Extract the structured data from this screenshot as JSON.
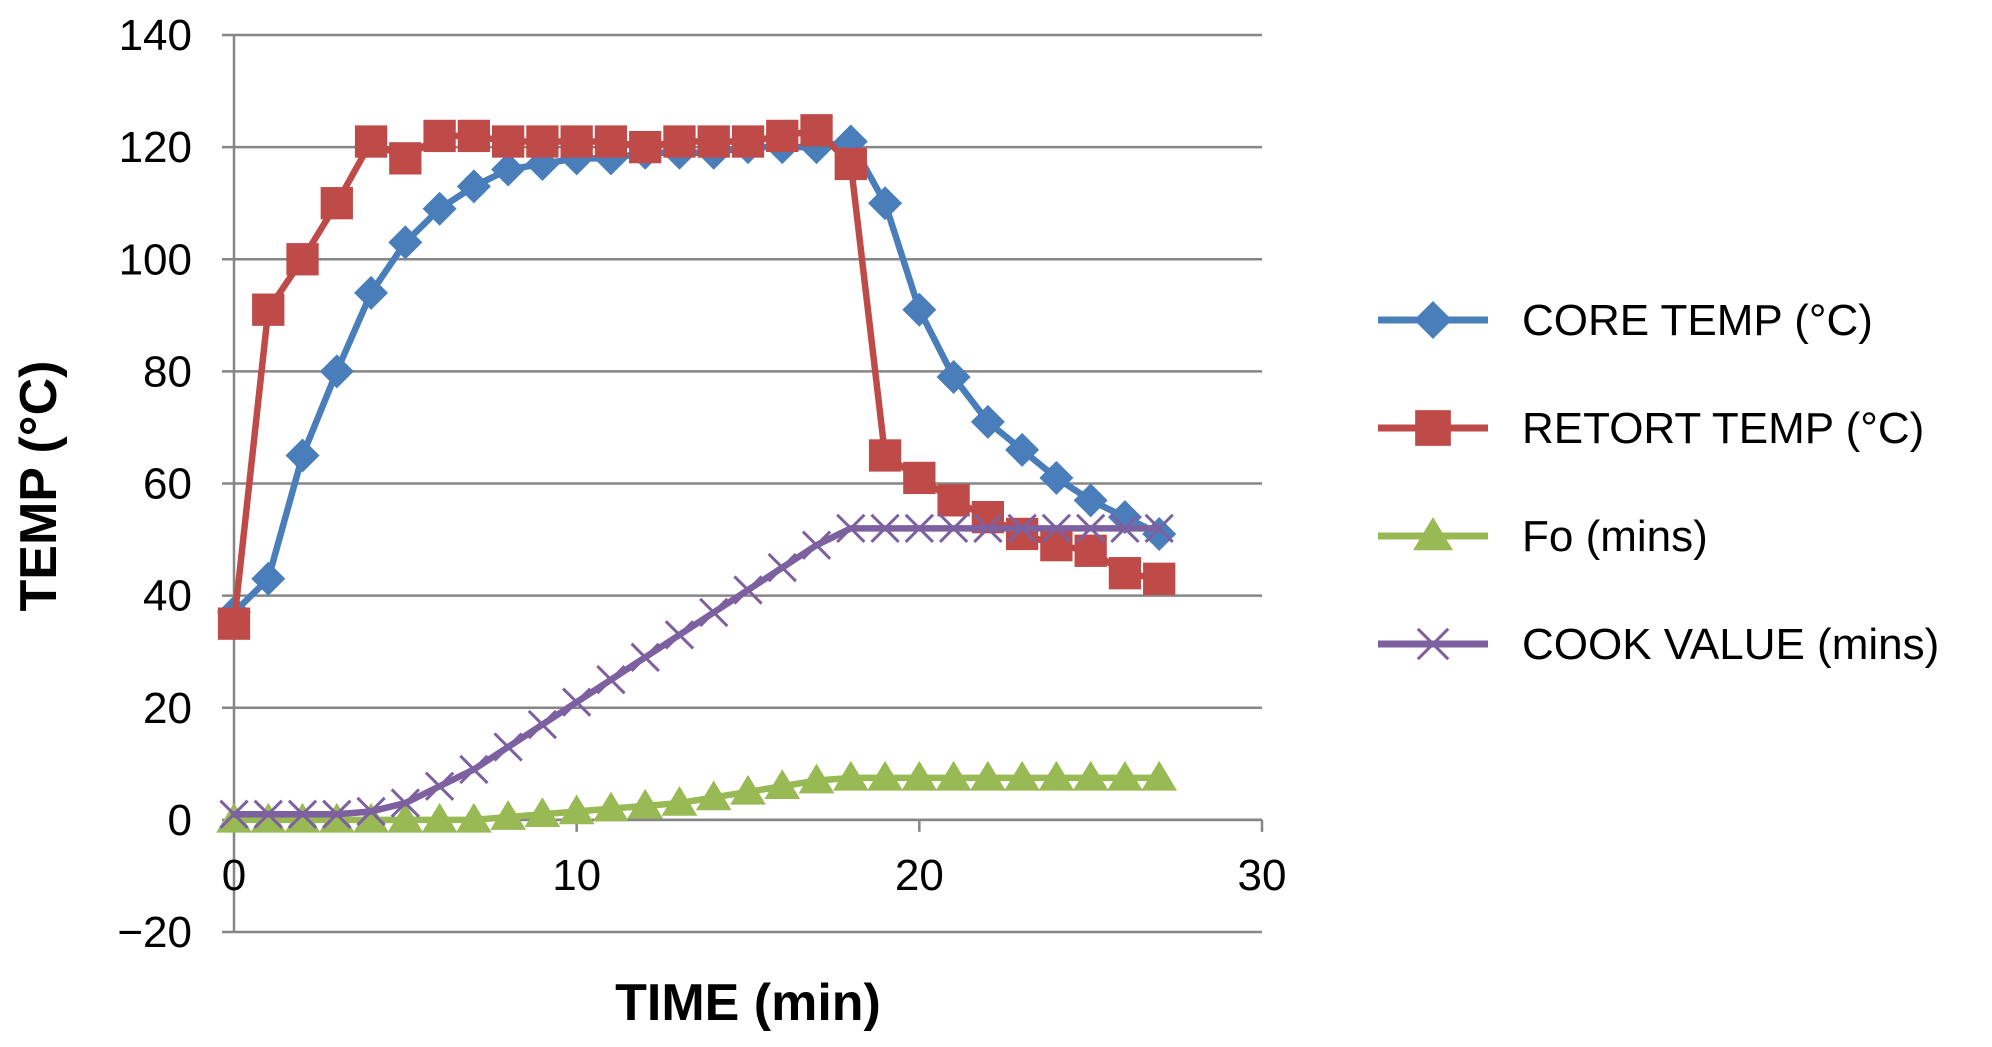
{
  "chart_data": {
    "type": "line",
    "xlabel": "TIME (min)",
    "ylabel": "TEMP (°C)",
    "xlim": [
      0,
      30
    ],
    "ylim": [
      -20,
      140
    ],
    "x_ticks": [
      "0",
      "10",
      "20",
      "30"
    ],
    "y_ticks": [
      "−20",
      "0",
      "20",
      "40",
      "60",
      "80",
      "100",
      "120",
      "140"
    ],
    "grid": "horizontal",
    "legend_position": "right",
    "x": [
      0,
      1,
      2,
      3,
      4,
      5,
      6,
      7,
      8,
      9,
      10,
      11,
      12,
      13,
      14,
      15,
      16,
      17,
      18,
      19,
      20,
      21,
      22,
      23,
      24,
      25,
      26,
      27
    ],
    "series": [
      {
        "name": "CORE TEMP (°C)",
        "color": "#4a7ebb",
        "marker": "diamond",
        "values": [
          37,
          43,
          65,
          80,
          94,
          103,
          109,
          113,
          116,
          117,
          118,
          118,
          119,
          119,
          119,
          120,
          120,
          120,
          121,
          110,
          91,
          79,
          71,
          66,
          61,
          57,
          54,
          51
        ]
      },
      {
        "name": "RETORT TEMP (°C)",
        "color": "#be4b48",
        "marker": "square",
        "values": [
          35,
          91,
          100,
          110,
          121,
          118,
          122,
          122,
          121,
          121,
          121,
          121,
          120,
          121,
          121,
          121,
          122,
          123,
          117,
          65,
          61,
          57,
          54,
          51,
          49,
          48,
          44,
          43
        ]
      },
      {
        "name": "Fo (mins)",
        "color": "#98b954",
        "marker": "triangle",
        "values": [
          0,
          0,
          0,
          0,
          0,
          0,
          0,
          0,
          0.5,
          1,
          1.5,
          2,
          2.5,
          3,
          4,
          5,
          6,
          7,
          7.5,
          7.5,
          7.5,
          7.5,
          7.5,
          7.5,
          7.5,
          7.5,
          7.5,
          7.5
        ]
      },
      {
        "name": "COOK VALUE (mins)",
        "color": "#7d60a0",
        "marker": "x",
        "values": [
          1,
          1,
          1,
          1,
          1.5,
          3,
          6,
          9,
          13,
          17,
          21,
          25,
          29,
          33,
          37,
          41,
          45,
          49,
          52,
          52,
          52,
          52,
          52,
          52,
          52,
          52,
          52,
          52
        ]
      }
    ]
  }
}
